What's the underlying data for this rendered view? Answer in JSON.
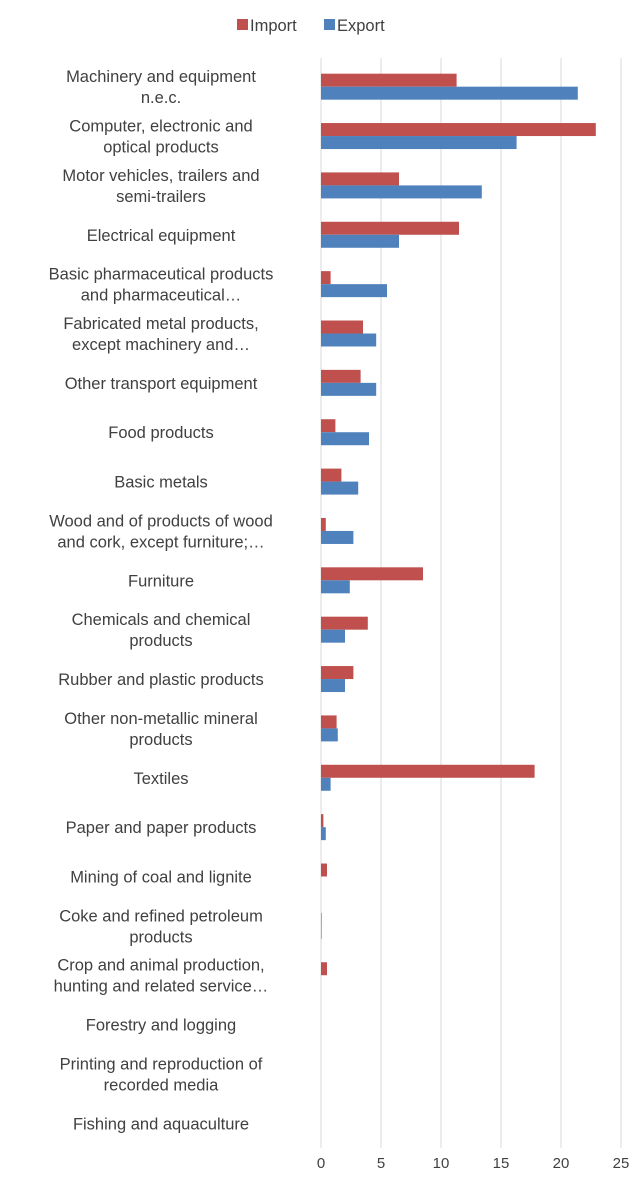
{
  "chart_data": {
    "type": "bar",
    "orientation": "horizontal",
    "categories": [
      [
        "Machinery and equipment",
        "n.e.c."
      ],
      [
        "Computer, electronic and",
        "optical products"
      ],
      [
        "Motor vehicles, trailers and",
        "semi-trailers"
      ],
      [
        "Electrical equipment"
      ],
      [
        "Basic pharmaceutical products",
        "and pharmaceutical…"
      ],
      [
        "Fabricated metal products,",
        "except machinery and…"
      ],
      [
        "Other transport equipment"
      ],
      [
        "Food products"
      ],
      [
        "Basic metals"
      ],
      [
        "Wood and of products of wood",
        "and cork, except furniture;…"
      ],
      [
        "Furniture"
      ],
      [
        "Chemicals and chemical",
        "products"
      ],
      [
        "Rubber and plastic products"
      ],
      [
        "Other non-metallic mineral",
        "products"
      ],
      [
        "Textiles"
      ],
      [
        "Paper and paper products"
      ],
      [
        "Mining of coal and lignite"
      ],
      [
        "Coke and refined petroleum",
        "products"
      ],
      [
        "Crop and animal production,",
        "hunting and related service…"
      ],
      [
        "Forestry and logging"
      ],
      [
        "Printing and reproduction of",
        "recorded media"
      ],
      [
        "Fishing and aquaculture"
      ]
    ],
    "series": [
      {
        "name": "Import",
        "color": "#C0504D",
        "values": [
          11.3,
          22.9,
          6.5,
          11.5,
          0.8,
          3.5,
          3.3,
          1.2,
          1.7,
          0.4,
          8.5,
          3.9,
          2.7,
          1.3,
          17.8,
          0.2,
          0.5,
          0.05,
          0.5,
          0.0,
          0.0,
          0.0
        ]
      },
      {
        "name": "Export",
        "color": "#4F81BD",
        "values": [
          21.4,
          16.3,
          13.4,
          6.5,
          5.5,
          4.6,
          4.6,
          4.0,
          3.1,
          2.7,
          2.4,
          2.0,
          2.0,
          1.4,
          0.8,
          0.4,
          0.0,
          0.05,
          0.0,
          0.0,
          0.0,
          0.0
        ]
      }
    ],
    "xlim": [
      0,
      25
    ],
    "xticks": [
      "0",
      "5",
      "10",
      "15",
      "20",
      "25"
    ],
    "grid": true,
    "legend": "top-center",
    "title": "",
    "xlabel": "",
    "ylabel": ""
  }
}
